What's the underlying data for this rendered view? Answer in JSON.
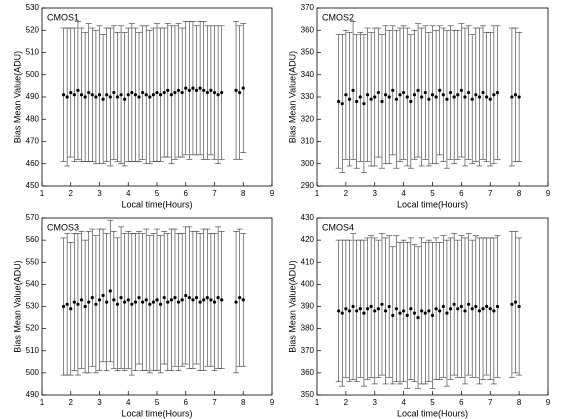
{
  "chart_data": [
    {
      "type": "scatter",
      "title": "CMOS1",
      "xlabel": "Local time(Hours)",
      "ylabel": "Bias Mean Value(ADU)",
      "color": "#000000",
      "title_color": "#0000cc",
      "xlim": [
        1,
        9
      ],
      "xticks": [
        1,
        2,
        3,
        4,
        5,
        6,
        7,
        8,
        9
      ],
      "ylim": [
        450,
        530
      ],
      "yticks": [
        450,
        460,
        470,
        480,
        490,
        500,
        510,
        520,
        530
      ],
      "x": [
        1.75,
        1.875,
        2,
        2.125,
        2.25,
        2.375,
        2.5,
        2.625,
        2.75,
        2.875,
        3,
        3.125,
        3.25,
        3.375,
        3.5,
        3.625,
        3.75,
        3.875,
        4,
        4.125,
        4.25,
        4.375,
        4.5,
        4.625,
        4.75,
        4.875,
        5,
        5.125,
        5.25,
        5.375,
        5.5,
        5.625,
        5.75,
        5.875,
        6,
        6.125,
        6.25,
        6.375,
        6.5,
        6.625,
        6.75,
        6.875,
        7,
        7.125,
        7.25,
        7.75,
        7.875,
        8
      ],
      "values": [
        491,
        490,
        492,
        491,
        493,
        491,
        490,
        492,
        491,
        490,
        491,
        489,
        491,
        490,
        492,
        490,
        491,
        489,
        491,
        492,
        491,
        490,
        492,
        491,
        490,
        491,
        492,
        491,
        492,
        493,
        491,
        492,
        493,
        492,
        494,
        493,
        494,
        493,
        494,
        493,
        492,
        493,
        492,
        491,
        492,
        493,
        492,
        494
      ],
      "errors": [
        30,
        31,
        29,
        30,
        31,
        30,
        29,
        31,
        30,
        30,
        31,
        29,
        30,
        31,
        30,
        29,
        31,
        30,
        30,
        31,
        30,
        29,
        30,
        31,
        30,
        30,
        31,
        30,
        29,
        30,
        31,
        30,
        30,
        29,
        30,
        31,
        30,
        29,
        30,
        31,
        30,
        29,
        30,
        31,
        30,
        31,
        30,
        29
      ]
    },
    {
      "type": "scatter",
      "title": "CMOS2",
      "xlabel": "Local time(Hours)",
      "ylabel": "Bias Mean Value(ADU)",
      "color": "#000000",
      "title_color": "#0000cc",
      "xlim": [
        1,
        9
      ],
      "xticks": [
        1,
        2,
        3,
        4,
        5,
        6,
        7,
        8,
        9
      ],
      "ylim": [
        290,
        370
      ],
      "yticks": [
        290,
        300,
        310,
        320,
        330,
        340,
        350,
        360,
        370
      ],
      "x": [
        1.75,
        1.875,
        2,
        2.125,
        2.25,
        2.375,
        2.5,
        2.625,
        2.75,
        2.875,
        3,
        3.125,
        3.25,
        3.375,
        3.5,
        3.625,
        3.75,
        3.875,
        4,
        4.125,
        4.25,
        4.375,
        4.5,
        4.625,
        4.75,
        4.875,
        5,
        5.125,
        5.25,
        5.375,
        5.5,
        5.625,
        5.75,
        5.875,
        6,
        6.125,
        6.25,
        6.375,
        6.5,
        6.625,
        6.75,
        6.875,
        7,
        7.125,
        7.25,
        7.75,
        7.875,
        8
      ],
      "values": [
        328,
        327,
        331,
        329,
        333,
        328,
        330,
        327,
        331,
        329,
        330,
        332,
        328,
        331,
        330,
        333,
        329,
        331,
        332,
        330,
        328,
        331,
        333,
        330,
        332,
        329,
        331,
        330,
        333,
        331,
        329,
        332,
        330,
        331,
        333,
        330,
        332,
        329,
        331,
        330,
        332,
        330,
        329,
        331,
        332,
        330,
        331,
        330
      ],
      "errors": [
        30,
        31,
        29,
        30,
        31,
        30,
        29,
        31,
        30,
        30,
        31,
        29,
        30,
        31,
        30,
        29,
        31,
        30,
        30,
        31,
        30,
        29,
        30,
        31,
        30,
        30,
        31,
        30,
        29,
        30,
        31,
        30,
        30,
        29,
        30,
        31,
        30,
        29,
        30,
        31,
        30,
        29,
        30,
        31,
        30,
        31,
        30,
        29
      ]
    },
    {
      "type": "scatter",
      "title": "CMOS3",
      "xlabel": "Local time(Hours)",
      "ylabel": "Bias Mean Value(ADU)",
      "color": "#000000",
      "title_color": "#0000cc",
      "xlim": [
        1,
        9
      ],
      "xticks": [
        1,
        2,
        3,
        4,
        5,
        6,
        7,
        8,
        9
      ],
      "ylim": [
        490,
        570
      ],
      "yticks": [
        490,
        500,
        510,
        520,
        530,
        540,
        550,
        560,
        570
      ],
      "x": [
        1.75,
        1.875,
        2,
        2.125,
        2.25,
        2.375,
        2.5,
        2.625,
        2.75,
        2.875,
        3,
        3.125,
        3.25,
        3.375,
        3.5,
        3.625,
        3.75,
        3.875,
        4,
        4.125,
        4.25,
        4.375,
        4.5,
        4.625,
        4.75,
        4.875,
        5,
        5.125,
        5.25,
        5.375,
        5.5,
        5.625,
        5.75,
        5.875,
        6,
        6.125,
        6.25,
        6.375,
        6.5,
        6.625,
        6.75,
        6.875,
        7,
        7.125,
        7.25,
        7.75,
        7.875,
        8
      ],
      "values": [
        530,
        531,
        529,
        532,
        531,
        533,
        530,
        532,
        534,
        531,
        533,
        535,
        532,
        537,
        533,
        531,
        534,
        532,
        533,
        531,
        532,
        534,
        532,
        533,
        531,
        532,
        533,
        531,
        534,
        532,
        533,
        534,
        532,
        533,
        535,
        534,
        533,
        534,
        532,
        533,
        534,
        533,
        532,
        534,
        533,
        532,
        534,
        533
      ],
      "errors": [
        31,
        32,
        30,
        31,
        32,
        31,
        30,
        32,
        31,
        31,
        32,
        30,
        31,
        32,
        31,
        30,
        32,
        31,
        31,
        32,
        31,
        30,
        31,
        32,
        31,
        31,
        32,
        31,
        30,
        31,
        32,
        31,
        31,
        30,
        31,
        32,
        31,
        30,
        31,
        32,
        31,
        30,
        31,
        32,
        31,
        32,
        31,
        30
      ]
    },
    {
      "type": "scatter",
      "title": "CMOS4",
      "xlabel": "Local time(Hours)",
      "ylabel": "Bias Mean Value(ADU)",
      "color": "#000000",
      "title_color": "#0000cc",
      "xlim": [
        1,
        9
      ],
      "xticks": [
        1,
        2,
        3,
        4,
        5,
        6,
        7,
        8,
        9
      ],
      "ylim": [
        350,
        430
      ],
      "yticks": [
        350,
        360,
        370,
        380,
        390,
        400,
        410,
        420,
        430
      ],
      "x": [
        1.75,
        1.875,
        2,
        2.125,
        2.25,
        2.375,
        2.5,
        2.625,
        2.75,
        2.875,
        3,
        3.125,
        3.25,
        3.375,
        3.5,
        3.625,
        3.75,
        3.875,
        4,
        4.125,
        4.25,
        4.375,
        4.5,
        4.625,
        4.75,
        4.875,
        5,
        5.125,
        5.25,
        5.375,
        5.5,
        5.625,
        5.75,
        5.875,
        6,
        6.125,
        6.25,
        6.375,
        6.5,
        6.625,
        6.75,
        6.875,
        7,
        7.125,
        7.25,
        7.75,
        7.875,
        8
      ],
      "values": [
        388,
        387,
        389,
        388,
        390,
        388,
        389,
        387,
        389,
        390,
        388,
        389,
        391,
        388,
        390,
        386,
        389,
        387,
        388,
        386,
        389,
        387,
        385,
        388,
        387,
        388,
        386,
        389,
        388,
        390,
        387,
        389,
        391,
        389,
        390,
        388,
        391,
        389,
        390,
        388,
        389,
        390,
        389,
        388,
        390,
        391,
        392,
        390
      ],
      "errors": [
        32,
        33,
        31,
        32,
        33,
        32,
        31,
        33,
        32,
        32,
        33,
        31,
        32,
        33,
        32,
        31,
        33,
        32,
        32,
        33,
        32,
        31,
        32,
        33,
        32,
        32,
        33,
        32,
        31,
        32,
        33,
        32,
        32,
        31,
        32,
        33,
        32,
        31,
        32,
        33,
        32,
        31,
        32,
        33,
        32,
        33,
        32,
        31
      ]
    }
  ]
}
